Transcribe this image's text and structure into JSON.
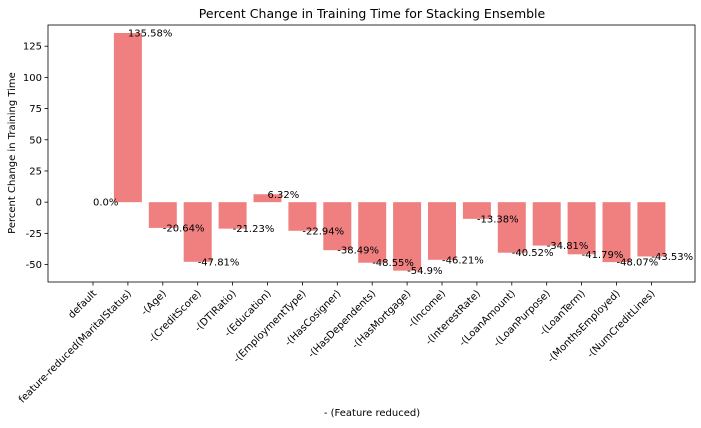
{
  "chart_data": {
    "type": "bar",
    "title": "Percent Change in Training Time for Stacking Ensemble",
    "xlabel": "- (Feature reduced)",
    "ylabel": "Percent Change in Training Time",
    "categories": [
      "default",
      "feature-reduced(MaritalStatus)",
      "-(Age)",
      "-(CreditScore)",
      "-(DTIRatio)",
      "-(Education)",
      "-(EmploymentType)",
      "-(HasCosigner)",
      "-(HasDependents)",
      "-(HasMortgage)",
      "-(Income)",
      "-(InterestRate)",
      "-(LoanAmount)",
      "-(LoanPurpose)",
      "-(LoanTerm)",
      "-(MonthsEmployed)",
      "-(NumCreditLines)"
    ],
    "values": [
      0.0,
      135.58,
      -20.64,
      -47.81,
      -21.23,
      6.32,
      -22.94,
      -38.49,
      -48.55,
      -54.9,
      -46.21,
      -13.38,
      -40.52,
      -34.81,
      -41.79,
      -48.07,
      -43.53
    ],
    "data_labels": [
      "0.0%",
      "135.58%",
      "-20.64%",
      "-47.81%",
      "-21.23%",
      "6.32%",
      "-22.94%",
      "-38.49%",
      "-48.55%",
      "-54.9%",
      "-46.21%",
      "-13.38%",
      "-40.52%",
      "-34.81%",
      "-41.79%",
      "-48.07%",
      "-43.53%"
    ],
    "yticks": [
      -50,
      -25,
      0,
      25,
      50,
      75,
      100,
      125
    ],
    "ylim": [
      -64,
      142
    ],
    "bar_color": "#f08080",
    "grid": false,
    "legend": "none"
  }
}
